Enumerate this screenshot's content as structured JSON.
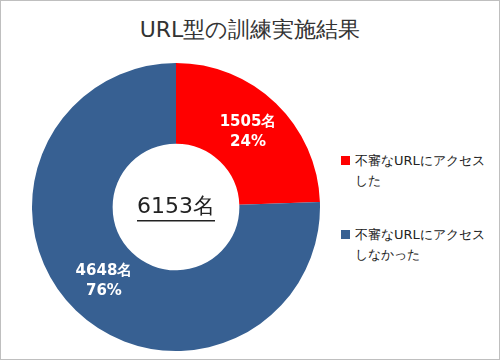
{
  "chart_data": {
    "type": "doughnut",
    "title": "URL型の訓練実施結果",
    "categories": [
      "不審なURLにアクセスした",
      "不審なURLにアクセスしなかった"
    ],
    "values": [
      1505,
      4648
    ],
    "value_labels": [
      [
        "1505名",
        "24%"
      ],
      [
        "4648名",
        "76%"
      ]
    ],
    "colors": [
      "#ff0000",
      "#376092"
    ],
    "center_text": "6153名",
    "data_labels": true,
    "legend": "right"
  }
}
